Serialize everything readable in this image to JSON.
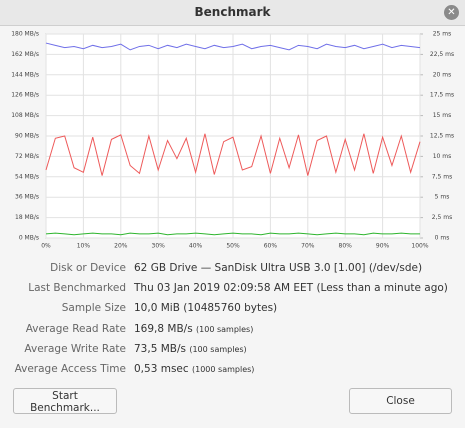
{
  "window": {
    "title": "Benchmark"
  },
  "chart_data": {
    "type": "line",
    "x": [
      0,
      2.5,
      5,
      7.5,
      10,
      12.5,
      15,
      17.5,
      20,
      22.5,
      25,
      27.5,
      30,
      32.5,
      35,
      37.5,
      40,
      42.5,
      45,
      47.5,
      50,
      52.5,
      55,
      57.5,
      60,
      62.5,
      65,
      67.5,
      70,
      72.5,
      75,
      77.5,
      80,
      82.5,
      85,
      87.5,
      90,
      92.5,
      95,
      97.5,
      100
    ],
    "xlim": [
      0,
      100
    ],
    "xticks": [
      {
        "value": 0,
        "label": "0%"
      },
      {
        "value": 10,
        "label": "10%"
      },
      {
        "value": 20,
        "label": "20%"
      },
      {
        "value": 30,
        "label": "30%"
      },
      {
        "value": 40,
        "label": "40%"
      },
      {
        "value": 50,
        "label": "50%"
      },
      {
        "value": 60,
        "label": "60%"
      },
      {
        "value": 70,
        "label": "70%"
      },
      {
        "value": 80,
        "label": "80%"
      },
      {
        "value": 90,
        "label": "90%"
      },
      {
        "value": 100,
        "label": "100%"
      }
    ],
    "ylim": [
      0,
      180
    ],
    "yticks": [
      {
        "value": 0,
        "label": "0 MB/s"
      },
      {
        "value": 18,
        "label": "18 MB/s"
      },
      {
        "value": 36,
        "label": "36 MB/s"
      },
      {
        "value": 54,
        "label": "54 MB/s"
      },
      {
        "value": 72,
        "label": "72 MB/s"
      },
      {
        "value": 90,
        "label": "90 MB/s"
      },
      {
        "value": 108,
        "label": "108 MB/s"
      },
      {
        "value": 126,
        "label": "126 MB/s"
      },
      {
        "value": 144,
        "label": "144 MB/s"
      },
      {
        "value": 162,
        "label": "162 MB/s"
      },
      {
        "value": 180,
        "label": "180 MB/s"
      }
    ],
    "y2lim": [
      0,
      25
    ],
    "y2ticks": [
      {
        "value": 0,
        "label": "0 ms"
      },
      {
        "value": 2.5,
        "label": "2,5 ms"
      },
      {
        "value": 5,
        "label": "5 ms"
      },
      {
        "value": 7.5,
        "label": "7,5 ms"
      },
      {
        "value": 10,
        "label": "10 ms"
      },
      {
        "value": 12.5,
        "label": "12,5 ms"
      },
      {
        "value": 15,
        "label": "15 ms"
      },
      {
        "value": 17.5,
        "label": "17,5 ms"
      },
      {
        "value": 20,
        "label": "20 ms"
      },
      {
        "value": 22.5,
        "label": "22,5 ms"
      },
      {
        "value": 25,
        "label": "25 ms"
      }
    ],
    "grid": true,
    "series": [
      {
        "color": "#6f6fe8",
        "values": [
          172,
          170,
          168,
          169,
          167,
          170,
          168,
          169,
          171,
          166,
          169,
          170,
          167,
          170,
          168,
          171,
          169,
          167,
          170,
          168,
          169,
          171,
          167,
          169,
          170,
          168,
          166,
          170,
          169,
          167,
          171,
          169,
          168,
          170,
          167,
          169,
          171,
          168,
          170,
          169,
          168
        ]
      },
      {
        "color": "#ee5a5a",
        "values": [
          60,
          88,
          90,
          62,
          58,
          89,
          55,
          87,
          91,
          64,
          57,
          90,
          60,
          86,
          70,
          88,
          58,
          92,
          56,
          85,
          89,
          60,
          63,
          90,
          57,
          88,
          62,
          91,
          55,
          86,
          90,
          58,
          87,
          60,
          92,
          57,
          89,
          64,
          90,
          58,
          85
        ]
      },
      {
        "color": "#2fb52f",
        "axis": "y2",
        "values": [
          0.5,
          0.6,
          0.5,
          0.4,
          0.5,
          0.6,
          0.5,
          0.5,
          0.4,
          0.6,
          0.5,
          0.5,
          0.6,
          0.4,
          0.5,
          0.5,
          0.6,
          0.5,
          0.4,
          0.5,
          0.6,
          0.5,
          0.5,
          0.4,
          0.6,
          0.5,
          0.5,
          0.6,
          0.5,
          0.4,
          0.5,
          0.6,
          0.5,
          0.5,
          0.4,
          0.6,
          0.5,
          0.5,
          0.6,
          0.5,
          0.5
        ]
      }
    ]
  },
  "info": {
    "rows": [
      {
        "label": "Disk or Device",
        "value": "62 GB Drive — SanDisk Ultra USB 3.0 [1.00] (/dev/sde)"
      },
      {
        "label": "Last Benchmarked",
        "value": "Thu 03 Jan 2019 02:09:58 AM EET (Less than a minute ago)"
      },
      {
        "label": "Sample Size",
        "value": "10,0 MiB (10485760 bytes)"
      },
      {
        "label": "Average Read Rate",
        "value": "169,8 MB/s",
        "note": "(100 samples)"
      },
      {
        "label": "Average Write Rate",
        "value": "73,5 MB/s",
        "note": "(100 samples)"
      },
      {
        "label": "Average Access Time",
        "value": "0,53 msec",
        "note": "(1000 samples)"
      }
    ]
  },
  "buttons": {
    "start": "Start Benchmark...",
    "close": "Close"
  }
}
